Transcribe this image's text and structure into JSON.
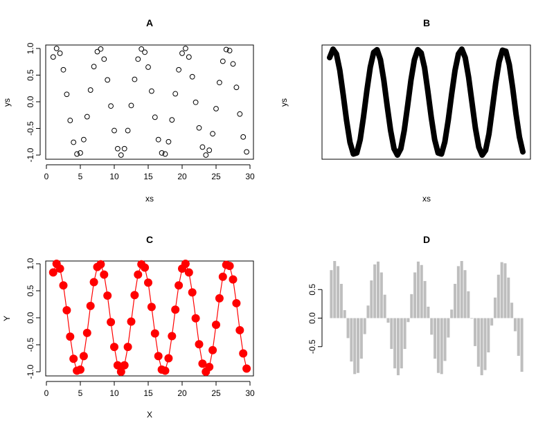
{
  "chart_data": [
    {
      "panel": "A",
      "type": "scatter",
      "title": "A",
      "xlabel": "xs",
      "ylabel": "ys",
      "xlim": [
        0,
        30
      ],
      "ylim": [
        -1,
        1
      ],
      "xticks": [
        "0",
        "5",
        "10",
        "15",
        "20",
        "25",
        "30"
      ],
      "yticks": [
        "-1.0",
        "-0.5",
        "0.0",
        "0.5",
        "1.0"
      ],
      "x": [
        1.0,
        1.5,
        2.0,
        2.5,
        3.0,
        3.5,
        4.0,
        4.5,
        5.0,
        5.5,
        6.0,
        6.5,
        7.0,
        7.5,
        8.0,
        8.5,
        9.0,
        9.5,
        10.0,
        10.5,
        11.0,
        11.5,
        12.0,
        12.5,
        13.0,
        13.5,
        14.0,
        14.5,
        15.0,
        15.5,
        16.0,
        16.5,
        17.0,
        17.5,
        18.0,
        18.5,
        19.0,
        19.5,
        20.0,
        20.5,
        21.0,
        21.5,
        22.0,
        22.5,
        23.0,
        23.5,
        24.0,
        24.5,
        25.0,
        25.5,
        26.0,
        26.5,
        27.0,
        27.5,
        28.0,
        28.5,
        29.0,
        29.5
      ],
      "y": [
        0.84,
        1.0,
        0.91,
        0.6,
        0.14,
        -0.35,
        -0.76,
        -0.98,
        -0.96,
        -0.71,
        -0.28,
        0.22,
        0.66,
        0.94,
        0.99,
        0.8,
        0.41,
        -0.08,
        -0.54,
        -0.88,
        -1.0,
        -0.88,
        -0.54,
        -0.07,
        0.42,
        0.8,
        0.99,
        0.93,
        0.65,
        0.2,
        -0.29,
        -0.71,
        -0.96,
        -0.98,
        -0.75,
        -0.34,
        0.15,
        0.6,
        0.91,
        1.0,
        0.84,
        0.47,
        -0.01,
        -0.49,
        -0.85,
        -1.0,
        -0.91,
        -0.6,
        -0.13,
        0.36,
        0.76,
        0.98,
        0.96,
        0.71,
        0.27,
        -0.23,
        -0.66,
        -0.94
      ]
    },
    {
      "panel": "B",
      "type": "line",
      "title": "B",
      "xlabel": "xs",
      "ylabel": "ys",
      "axes": "none",
      "x": [
        1.0,
        1.5,
        2.0,
        2.5,
        3.0,
        3.5,
        4.0,
        4.5,
        5.0,
        5.5,
        6.0,
        6.5,
        7.0,
        7.5,
        8.0,
        8.5,
        9.0,
        9.5,
        10.0,
        10.5,
        11.0,
        11.5,
        12.0,
        12.5,
        13.0,
        13.5,
        14.0,
        14.5,
        15.0,
        15.5,
        16.0,
        16.5,
        17.0,
        17.5,
        18.0,
        18.5,
        19.0,
        19.5,
        20.0,
        20.5,
        21.0,
        21.5,
        22.0,
        22.5,
        23.0,
        23.5,
        24.0,
        24.5,
        25.0,
        25.5,
        26.0,
        26.5,
        27.0,
        27.5,
        28.0,
        28.5,
        29.0,
        29.5
      ],
      "y": [
        0.84,
        1.0,
        0.91,
        0.6,
        0.14,
        -0.35,
        -0.76,
        -0.98,
        -0.96,
        -0.71,
        -0.28,
        0.22,
        0.66,
        0.94,
        0.99,
        0.8,
        0.41,
        -0.08,
        -0.54,
        -0.88,
        -1.0,
        -0.88,
        -0.54,
        -0.07,
        0.42,
        0.8,
        0.99,
        0.93,
        0.65,
        0.2,
        -0.29,
        -0.71,
        -0.96,
        -0.98,
        -0.75,
        -0.34,
        0.15,
        0.6,
        0.91,
        1.0,
        0.84,
        0.47,
        -0.01,
        -0.49,
        -0.85,
        -1.0,
        -0.91,
        -0.6,
        -0.13,
        0.36,
        0.76,
        0.98,
        0.96,
        0.71,
        0.27,
        -0.23,
        -0.66,
        -0.94
      ],
      "color": "#000000"
    },
    {
      "panel": "C",
      "type": "line",
      "title": "C",
      "xlabel": "X",
      "ylabel": "Y",
      "xlim": [
        0,
        30
      ],
      "ylim": [
        -1,
        1
      ],
      "xticks": [
        "0",
        "5",
        "10",
        "15",
        "20",
        "25",
        "30"
      ],
      "yticks": [
        "-1.0",
        "-0.5",
        "0.0",
        "0.5",
        "1.0"
      ],
      "x": [
        1.0,
        1.5,
        2.0,
        2.5,
        3.0,
        3.5,
        4.0,
        4.5,
        5.0,
        5.5,
        6.0,
        6.5,
        7.0,
        7.5,
        8.0,
        8.5,
        9.0,
        9.5,
        10.0,
        10.5,
        11.0,
        11.5,
        12.0,
        12.5,
        13.0,
        13.5,
        14.0,
        14.5,
        15.0,
        15.5,
        16.0,
        16.5,
        17.0,
        17.5,
        18.0,
        18.5,
        19.0,
        19.5,
        20.0,
        20.5,
        21.0,
        21.5,
        22.0,
        22.5,
        23.0,
        23.5,
        24.0,
        24.5,
        25.0,
        25.5,
        26.0,
        26.5,
        27.0,
        27.5,
        28.0,
        28.5,
        29.0,
        29.5
      ],
      "y": [
        0.84,
        1.0,
        0.91,
        0.6,
        0.14,
        -0.35,
        -0.76,
        -0.98,
        -0.96,
        -0.71,
        -0.28,
        0.22,
        0.66,
        0.94,
        0.99,
        0.8,
        0.41,
        -0.08,
        -0.54,
        -0.88,
        -1.0,
        -0.88,
        -0.54,
        -0.07,
        0.42,
        0.8,
        0.99,
        0.93,
        0.65,
        0.2,
        -0.29,
        -0.71,
        -0.96,
        -0.98,
        -0.75,
        -0.34,
        0.15,
        0.6,
        0.91,
        1.0,
        0.84,
        0.47,
        -0.01,
        -0.49,
        -0.85,
        -1.0,
        -0.91,
        -0.6,
        -0.13,
        0.36,
        0.76,
        0.98,
        0.96,
        0.71,
        0.27,
        -0.23,
        -0.66,
        -0.94
      ],
      "color": "#ff0000"
    },
    {
      "panel": "D",
      "type": "bar",
      "title": "D",
      "yticks": [
        "-0.5",
        "0.0",
        "0.5"
      ],
      "ylim": [
        -1,
        1
      ],
      "values": [
        0.84,
        1.0,
        0.91,
        0.6,
        0.14,
        -0.35,
        -0.76,
        -0.98,
        -0.96,
        -0.71,
        -0.28,
        0.22,
        0.66,
        0.94,
        0.99,
        0.8,
        0.41,
        -0.08,
        -0.54,
        -0.88,
        -1.0,
        -0.88,
        -0.54,
        -0.07,
        0.42,
        0.8,
        0.99,
        0.93,
        0.65,
        0.2,
        -0.29,
        -0.71,
        -0.96,
        -0.98,
        -0.75,
        -0.34,
        0.15,
        0.6,
        0.91,
        1.0,
        0.84,
        0.47,
        -0.01,
        -0.49,
        -0.85,
        -1.0,
        -0.91,
        -0.6,
        -0.13,
        0.36,
        0.76,
        0.98,
        0.96,
        0.71,
        0.27,
        -0.23,
        -0.66,
        -0.94
      ],
      "color": "#bebebe"
    }
  ]
}
